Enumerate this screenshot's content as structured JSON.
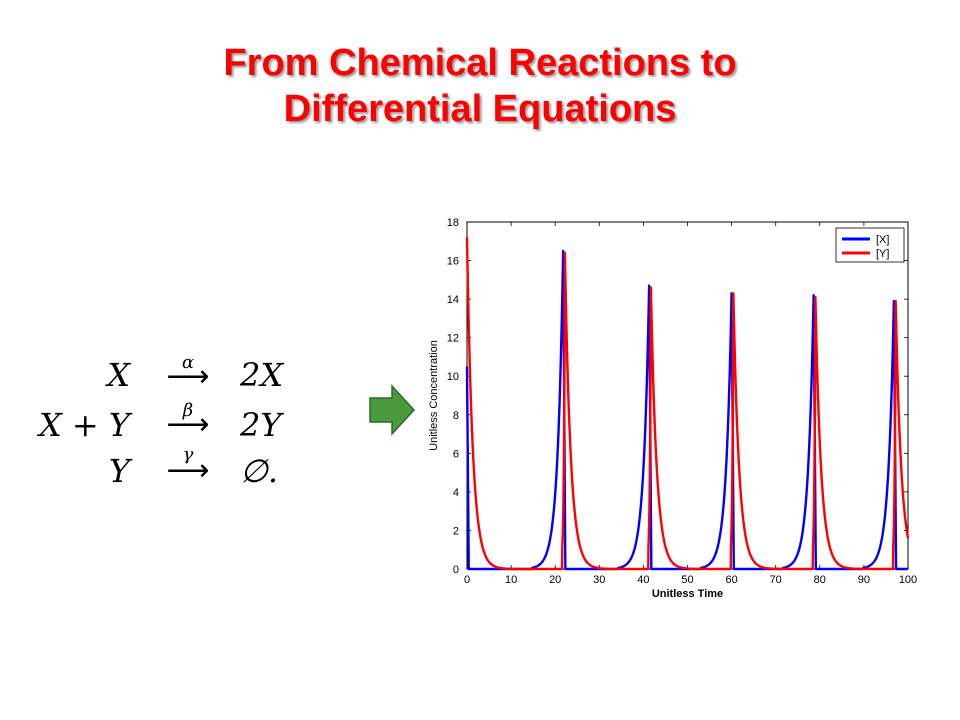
{
  "slide": {
    "title_line1": "From Chemical Reactions to",
    "title_line2": "Differential Equations",
    "title_color": "#ff0000"
  },
  "reactions": [
    {
      "reactants": "X",
      "rate": "α",
      "arrow": "⟶",
      "products": "2X"
    },
    {
      "reactants": "X + Y",
      "rate": "β",
      "arrow": "⟶",
      "products": "2Y"
    },
    {
      "reactants": "Y",
      "rate": "γ",
      "arrow": "⟶",
      "products": "∅."
    }
  ],
  "arrow_icon": "right-arrow-icon",
  "arrow_color": "#4a9a3c",
  "chart_data": {
    "type": "line",
    "title": "",
    "xlabel": "Unitless Time",
    "ylabel": "Unitless Concentration",
    "xlim": [
      0,
      100
    ],
    "ylim": [
      0,
      18
    ],
    "xticks": [
      0,
      10,
      20,
      30,
      40,
      50,
      60,
      70,
      80,
      90,
      100
    ],
    "yticks": [
      0,
      2,
      4,
      6,
      8,
      10,
      12,
      14,
      16,
      18
    ],
    "grid": false,
    "legend_position": "top-right",
    "series": [
      {
        "name": "[X]",
        "color": "#0000ff",
        "peaks": [
          {
            "t": 21.8,
            "v": 16.5
          },
          {
            "t": 41.3,
            "v": 14.7
          },
          {
            "t": 60.0,
            "v": 14.3
          },
          {
            "t": 78.6,
            "v": 14.2
          },
          {
            "t": 96.8,
            "v": 13.9
          }
        ],
        "start": 10.5
      },
      {
        "name": "[Y]",
        "color": "#ff0000",
        "peaks": [
          {
            "t": 22.2,
            "v": 16.4
          },
          {
            "t": 41.7,
            "v": 14.6
          },
          {
            "t": 60.4,
            "v": 14.3
          },
          {
            "t": 79.0,
            "v": 14.1
          },
          {
            "t": 97.2,
            "v": 13.9
          }
        ],
        "start": 17.2,
        "end": 1.1
      }
    ]
  }
}
